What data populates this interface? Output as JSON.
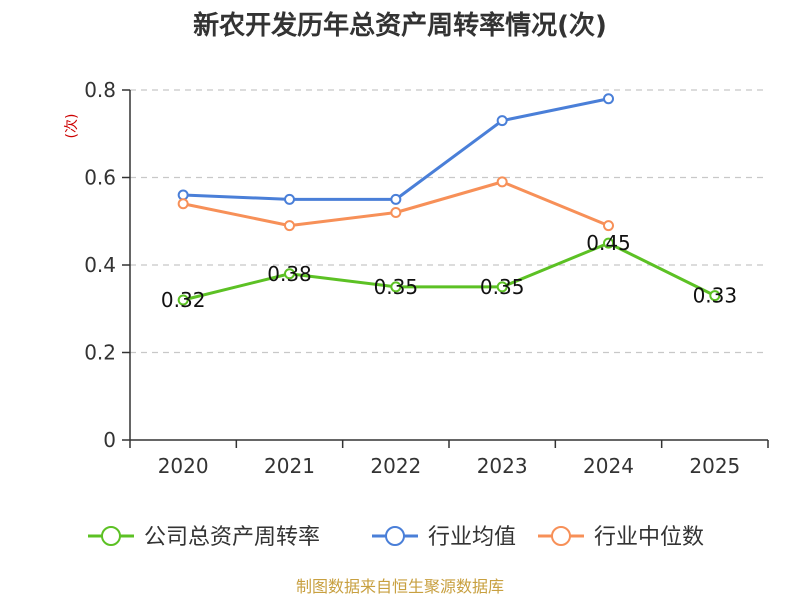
{
  "chart_data": {
    "type": "line",
    "title": "新农开发历年总资产周转率情况(次)",
    "ylabel": "(次)",
    "categories": [
      "2020",
      "2021",
      "2022",
      "2023",
      "2024",
      "2025"
    ],
    "ylim": [
      0,
      0.8
    ],
    "yticks": [
      "0",
      "0.2",
      "0.4",
      "0.6",
      "0.8"
    ],
    "grid": true,
    "legend_position": "bottom",
    "series": [
      {
        "name": "公司总资产周转率",
        "color": "#5cc124",
        "values": [
          0.32,
          0.38,
          0.35,
          0.35,
          0.45,
          0.33
        ],
        "labels": [
          "0.32",
          "0.38",
          "0.35",
          "0.35",
          "0.45",
          "0.33"
        ]
      },
      {
        "name": "行业均值",
        "color": "#4a7fd8",
        "values": [
          0.56,
          0.55,
          0.55,
          0.73,
          0.78,
          null
        ]
      },
      {
        "name": "行业中位数",
        "color": "#f79058",
        "values": [
          0.54,
          0.49,
          0.52,
          0.59,
          0.49,
          null
        ]
      }
    ],
    "source": "制图数据来自恒生聚源数据库"
  }
}
